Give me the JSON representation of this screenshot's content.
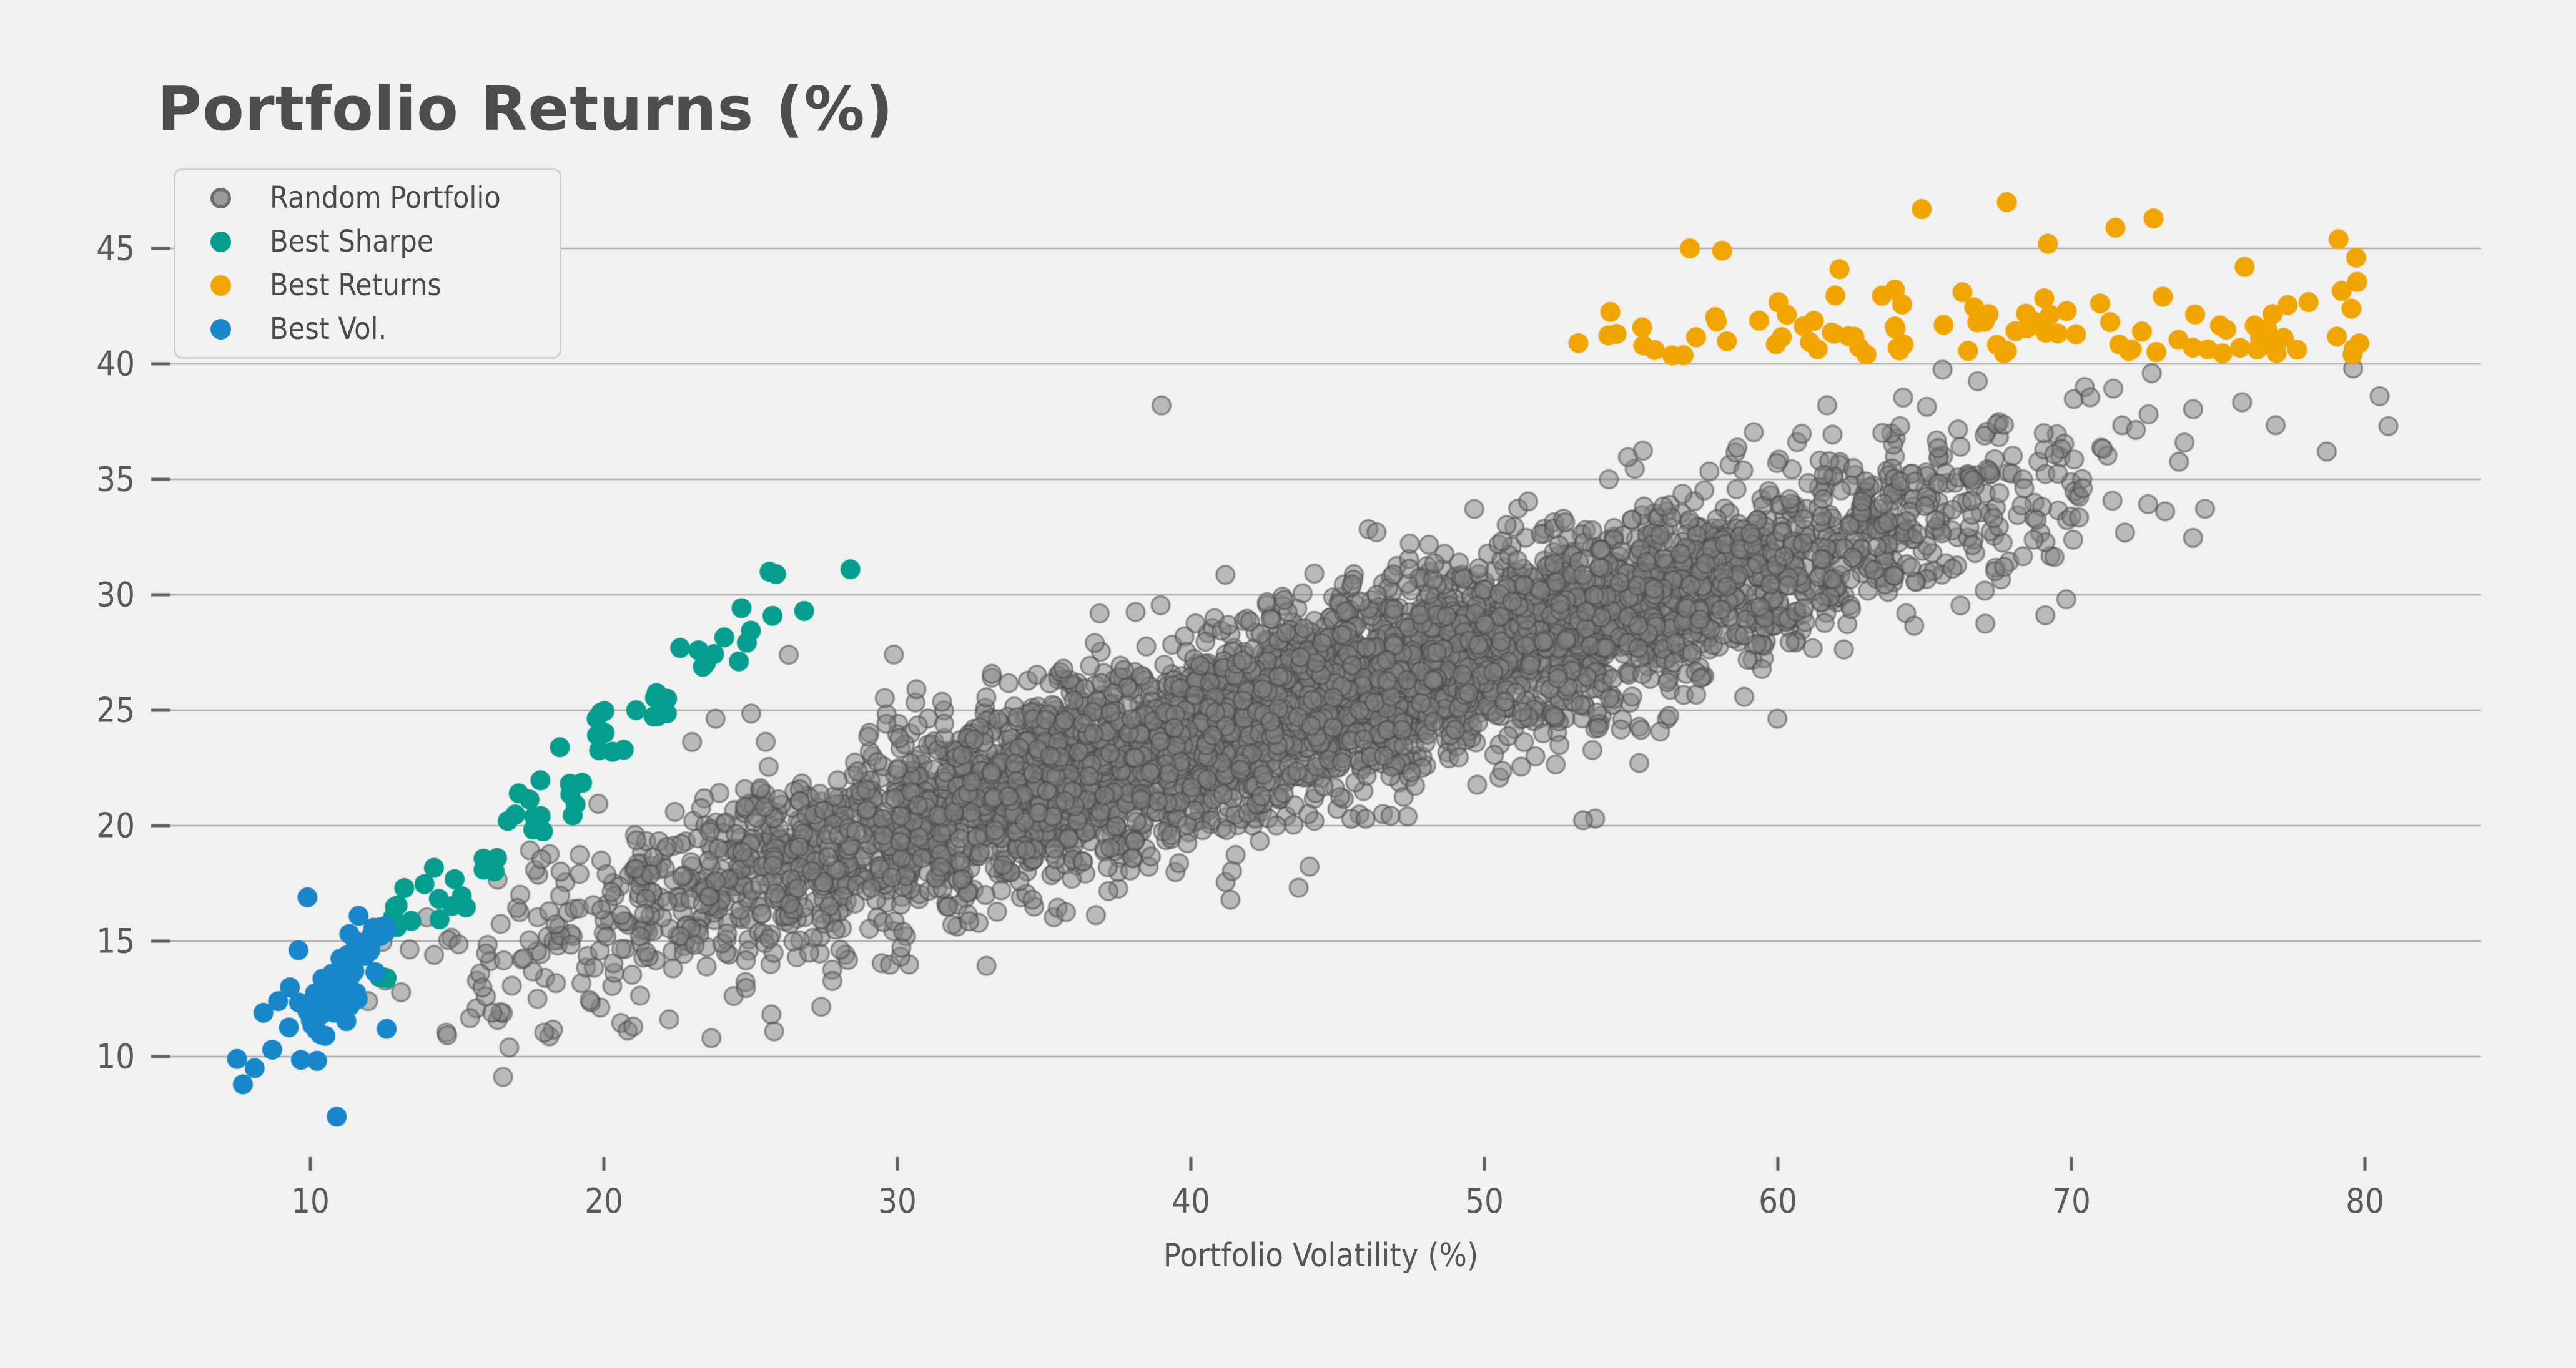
{
  "chart": {
    "title": "Portfolio Returns (%)",
    "x_axis_label": "Portfolio Volatility (%)"
  },
  "colors": {
    "background": "#f1f1f1",
    "grid": "#ababab",
    "tick_mark": "#5f5f5f",
    "title_text": "#4d4d4d",
    "tick_text": "#5a5a5a",
    "gray_fill": "#828282",
    "gray_edge": "#4b4b4b",
    "teal": "#059e8e",
    "orange": "#f0a500",
    "blue": "#1787c9"
  },
  "legend": {
    "items": [
      {
        "label": "Random Portfolio",
        "color": "#9a9a9a",
        "edge": true
      },
      {
        "label": "Best Sharpe",
        "color": "#059e8e",
        "edge": false
      },
      {
        "label": "Best Returns",
        "color": "#f0a500",
        "edge": false
      },
      {
        "label": "Best Vol.",
        "color": "#1787c9",
        "edge": false
      }
    ]
  },
  "chart_data": {
    "type": "scatter",
    "title": "Portfolio Returns (%)",
    "xlabel": "Portfolio Volatility (%)",
    "ylabel": "",
    "xlim": [
      4.9,
      84.0
    ],
    "ylim": [
      5.4,
      48.2
    ],
    "x_ticks": [
      10,
      20,
      30,
      40,
      50,
      60,
      70,
      80
    ],
    "y_ticks": [
      10,
      15,
      20,
      25,
      30,
      35,
      40,
      45
    ],
    "grid": "horizontal",
    "legend_position": "upper-left",
    "series": [
      {
        "name": "Random Portfolio",
        "color": "#828282",
        "edge_color": "#4b4b4b",
        "alpha": 0.5,
        "marker_radius_px": 14.5,
        "count": 5200,
        "generator": {
          "kind": "correlated-cloud",
          "x_center": 44,
          "x_half_range": 34,
          "x_dist": "bates3",
          "trend_intercept": 8.4,
          "trend_slope": 0.383,
          "y_noise_sd": 2.05,
          "gray_cap_above": {
            "x_min": 52,
            "y_max": 40.3
          }
        },
        "low_outliers": {
          "count": 28,
          "x_min": 16,
          "x_max": 54,
          "drop_min": 3.2,
          "drop_max": 8.7
        },
        "high_outliers": {
          "count": 16,
          "x_min": 24,
          "x_max": 74,
          "rise_min": 4.4,
          "rise_max": 7.6
        },
        "explicit_points": [
          [
            39.0,
            38.2
          ],
          [
            80.5,
            38.6
          ],
          [
            79.6,
            39.8
          ],
          [
            78.7,
            36.2
          ],
          [
            80.8,
            37.3
          ],
          [
            16.2,
            11.9
          ],
          [
            21.0,
            11.3
          ],
          [
            23.5,
            13.9
          ],
          [
            27.0,
            14.5
          ],
          [
            30.2,
            15.4
          ],
          [
            33.0,
            17.0
          ],
          [
            38.0,
            18.6
          ],
          [
            44.0,
            20.5
          ],
          [
            52.0,
            24.0
          ],
          [
            26.3,
            27.4
          ]
        ]
      },
      {
        "name": "Best Sharpe",
        "color": "#059e8e",
        "alpha": 1,
        "marker_radius_px": 16,
        "count": 58,
        "generator": {
          "kind": "frontier-edge",
          "x_min": 12.3,
          "x_span": 14.6,
          "x_pow": 1.25,
          "trend_intercept": 0.8,
          "trend_slope": 1.12,
          "y_noise_sd": 0.85
        },
        "explicit_points": [
          [
            28.4,
            31.1
          ],
          [
            22.6,
            27.7
          ],
          [
            19.9,
            24.9
          ],
          [
            18.5,
            23.4
          ],
          [
            20.3,
            23.2
          ],
          [
            17.1,
            21.4
          ],
          [
            13.2,
            17.3
          ],
          [
            12.6,
            13.4
          ],
          [
            21.1,
            25.0
          ]
        ]
      },
      {
        "name": "Best Returns",
        "color": "#f0a500",
        "alpha": 1,
        "marker_radius_px": 16,
        "count": 88,
        "generator": {
          "kind": "top-band",
          "x_min": 53,
          "x_span": 27,
          "x_pow": 0.85,
          "y_base": 40.35,
          "y_noise_sd": 1.25,
          "y_cap": 44.6
        },
        "explicit_points": [
          [
            64.9,
            46.7
          ],
          [
            67.8,
            47.0
          ],
          [
            72.8,
            46.3
          ],
          [
            58.1,
            44.9
          ],
          [
            57.0,
            45.0
          ],
          [
            79.1,
            45.4
          ],
          [
            79.7,
            44.6
          ],
          [
            69.2,
            45.2
          ],
          [
            71.5,
            45.9
          ],
          [
            53.2,
            40.9
          ],
          [
            54.5,
            41.3
          ],
          [
            55.8,
            40.6
          ],
          [
            62.1,
            44.1
          ],
          [
            75.9,
            44.2
          ]
        ]
      },
      {
        "name": "Best Vol.",
        "color": "#1787c9",
        "alpha": 1,
        "marker_radius_px": 16,
        "count": 66,
        "generator": {
          "kind": "low-vol-cluster",
          "x_min": 9.2,
          "x_span": 3.6,
          "x_dist": "triangular",
          "trend_intercept": -0.6,
          "trend_slope": 1.25,
          "y_noise_sd": 1.05,
          "y_min": 9.6,
          "y_max": 16.2
        },
        "explicit_points": [
          [
            7.5,
            9.9
          ],
          [
            7.7,
            8.8
          ],
          [
            8.1,
            9.5
          ],
          [
            8.4,
            11.9
          ],
          [
            8.7,
            10.3
          ],
          [
            9.9,
            16.9
          ],
          [
            10.9,
            7.4
          ],
          [
            12.6,
            11.2
          ],
          [
            9.3,
            13.0
          ],
          [
            8.9,
            12.4
          ]
        ]
      }
    ]
  }
}
